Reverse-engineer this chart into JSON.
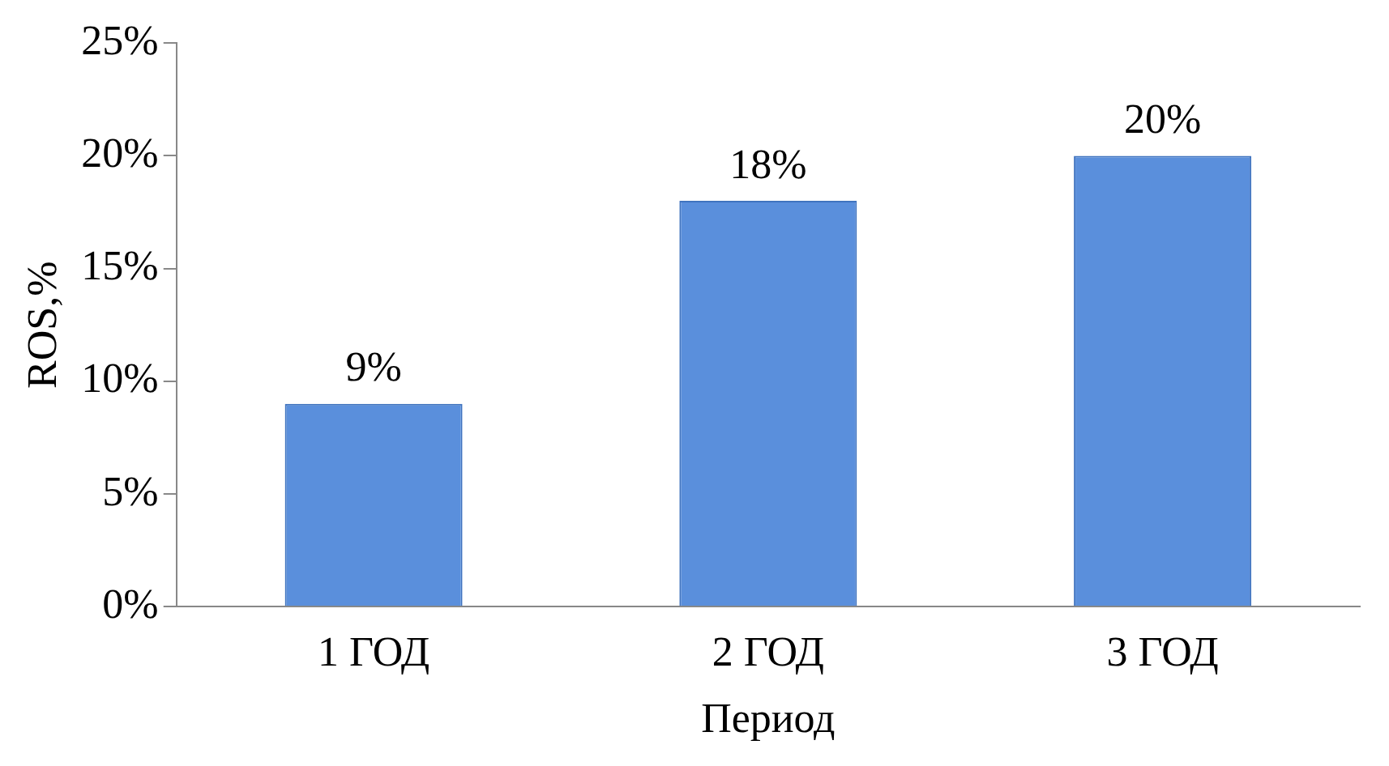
{
  "chart_data": {
    "type": "bar",
    "xlabel": "Период",
    "ylabel": "ROS,%",
    "categories": [
      "1 ГОД",
      "2 ГОД",
      "3 ГОД"
    ],
    "values": [
      9,
      18,
      20
    ],
    "color": "#5a8fdc",
    "value_labels": [
      "9%",
      "18%",
      "20%"
    ],
    "ylim": [
      0,
      25
    ],
    "yticks": [
      {
        "value": 0,
        "label": "0%"
      },
      {
        "value": 5,
        "label": "5%"
      },
      {
        "value": 10,
        "label": "10%"
      },
      {
        "value": 15,
        "label": "15%"
      },
      {
        "value": 20,
        "label": "20%"
      },
      {
        "value": 25,
        "label": "25%"
      }
    ],
    "grid": false,
    "legend": false
  }
}
